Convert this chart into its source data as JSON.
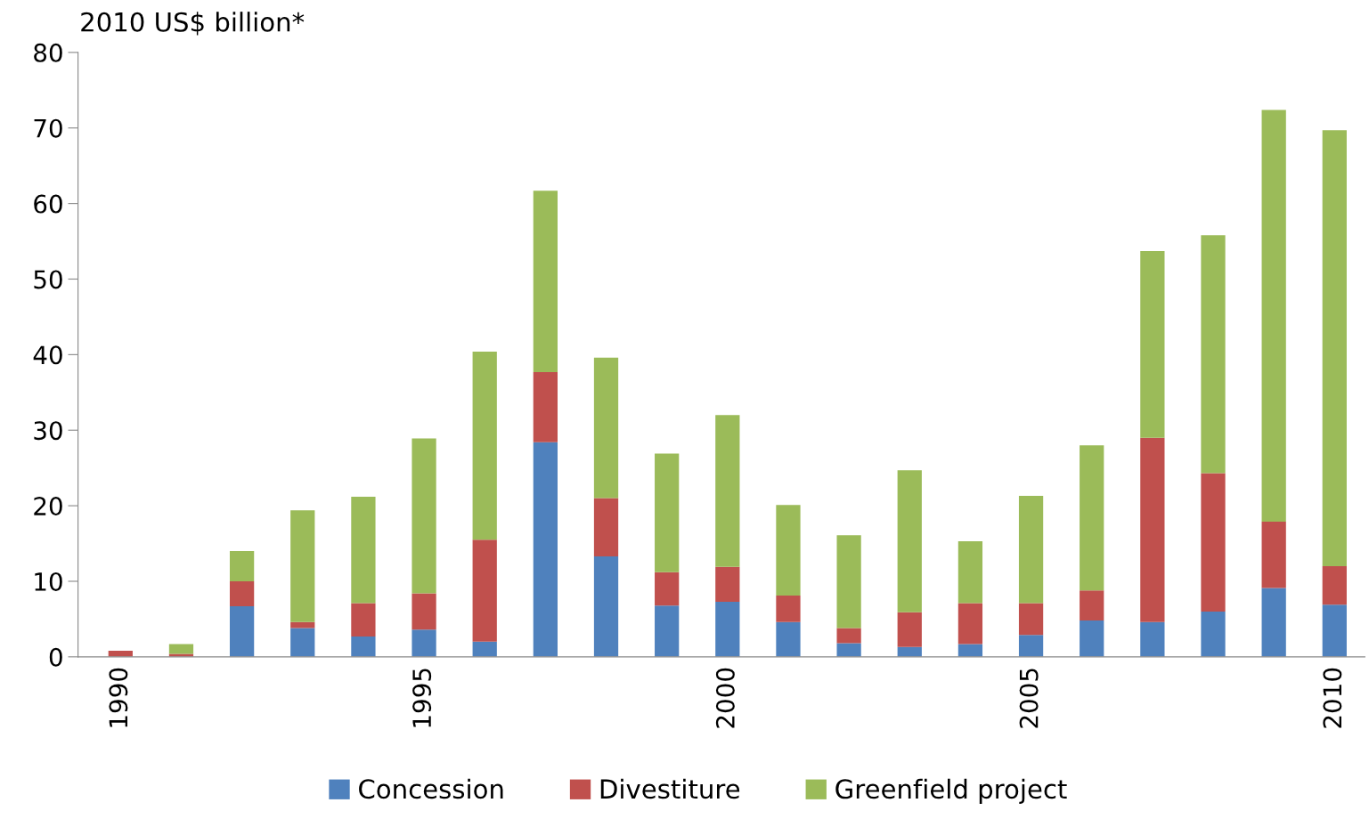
{
  "chart_data": {
    "type": "bar",
    "stacked": true,
    "ylabel": "2010 US$ billion*",
    "categories": [
      "1990",
      null,
      null,
      null,
      null,
      "1995",
      null,
      null,
      null,
      null,
      "2000",
      null,
      null,
      null,
      null,
      "2005",
      null,
      null,
      null,
      null,
      "2010"
    ],
    "series": [
      {
        "name": "Concession",
        "color": "#4f81bd",
        "values": [
          null,
          0,
          6.7,
          3.8,
          2.7,
          3.6,
          2.0,
          28.4,
          13.3,
          6.8,
          7.3,
          4.6,
          1.8,
          1.3,
          1.7,
          2.9,
          4.8,
          4.6,
          6.0,
          9.1,
          6.9
        ]
      },
      {
        "name": "Divestiture",
        "color": "#c0504d",
        "values": [
          0.8,
          0.4,
          3.3,
          0.8,
          4.4,
          4.8,
          13.5,
          9.3,
          7.7,
          4.4,
          4.6,
          3.5,
          2.0,
          4.6,
          5.4,
          4.2,
          4.0,
          24.4,
          18.3,
          8.8,
          5.1
        ]
      },
      {
        "name": "Greenfield project",
        "color": "#9bbb59",
        "values": [
          0,
          1.3,
          4.0,
          14.8,
          14.1,
          20.5,
          24.9,
          24.0,
          18.6,
          15.7,
          20.1,
          12.0,
          12.3,
          18.8,
          8.2,
          14.2,
          19.2,
          24.7,
          31.5,
          54.5,
          57.7
        ]
      }
    ],
    "ylim": [
      0,
      80
    ],
    "yticks": [
      0,
      10,
      20,
      30,
      40,
      50,
      60,
      70,
      80
    ],
    "grid": false,
    "legend": "bottom"
  }
}
